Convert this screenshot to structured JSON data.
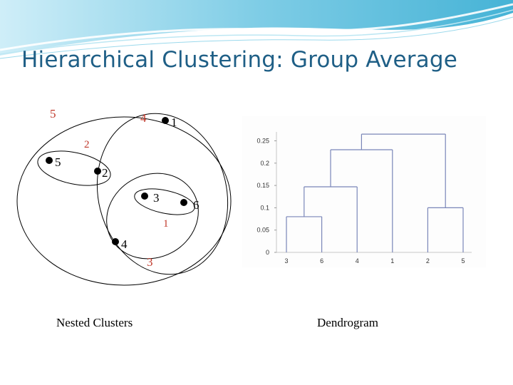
{
  "title": "Hierarchical Clustering: Group Average",
  "nested_clusters": {
    "caption": "Nested Clusters",
    "points": [
      {
        "label": "1"
      },
      {
        "label": "5"
      },
      {
        "label": "2"
      },
      {
        "label": "3"
      },
      {
        "label": "6"
      },
      {
        "label": "4"
      }
    ],
    "merge_order_labels": [
      "5",
      "4",
      "2",
      "1",
      "3"
    ]
  },
  "dendrogram": {
    "caption": "Dendrogram",
    "leaf_order": [
      "3",
      "6",
      "4",
      "1",
      "2",
      "5"
    ],
    "ytick_labels": [
      "0",
      "0.05",
      "0.1",
      "0.15",
      "0.2",
      "0.25"
    ]
  },
  "chart_data": {
    "type": "dendrogram",
    "x": [
      "3",
      "6",
      "4",
      "1",
      "2",
      "5"
    ],
    "ylim": [
      0,
      0.27
    ],
    "yticks": [
      0,
      0.05,
      0.1,
      0.15,
      0.2,
      0.25
    ],
    "merges": [
      {
        "members": [
          "3",
          "6"
        ],
        "height": 0.08
      },
      {
        "members": [
          "2",
          "5"
        ],
        "height": 0.1
      },
      {
        "members": [
          "3",
          "6",
          "4"
        ],
        "height": 0.147
      },
      {
        "members": [
          "3",
          "6",
          "4",
          "1"
        ],
        "height": 0.23
      },
      {
        "members": [
          "3",
          "6",
          "4",
          "1",
          "2",
          "5"
        ],
        "height": 0.265
      }
    ]
  }
}
